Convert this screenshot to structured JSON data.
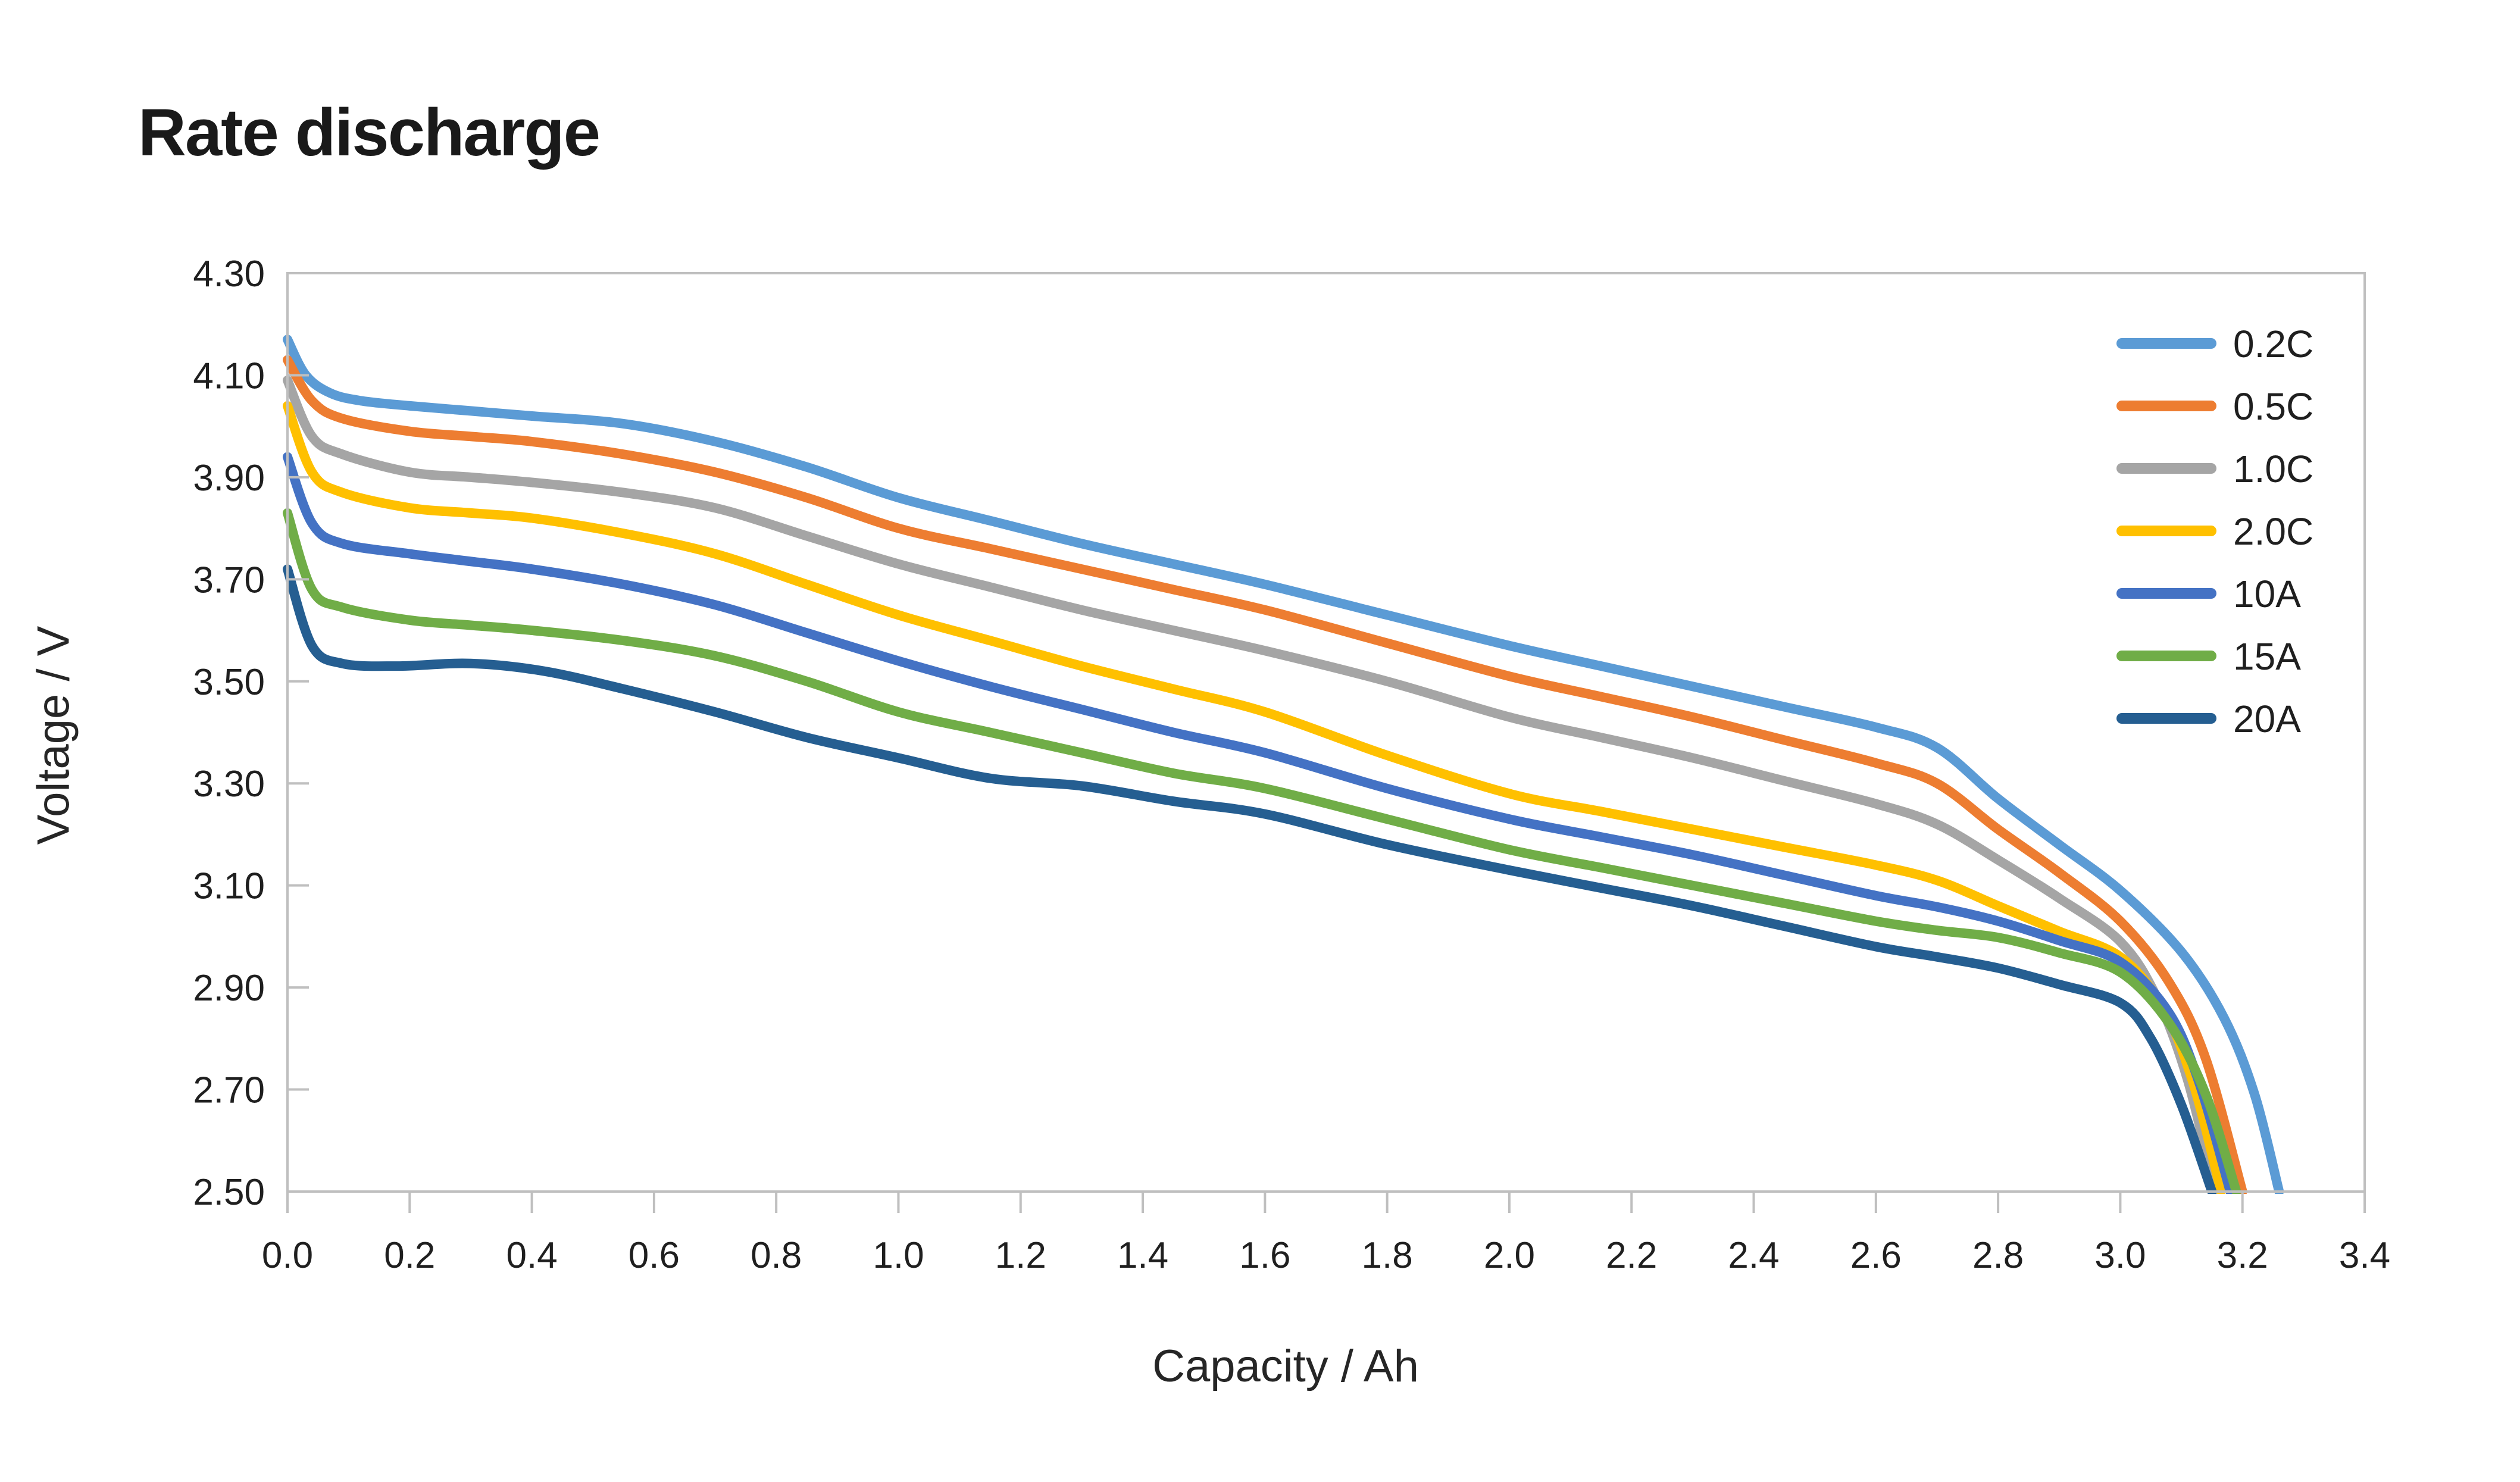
{
  "chart": {
    "title": "Rate discharge",
    "xlabel": "Capacity / Ah",
    "ylabel": "Voltage / V"
  },
  "chart_data": {
    "type": "line",
    "title": "Rate discharge",
    "xlabel": "Capacity / Ah",
    "ylabel": "Voltage / V",
    "xlim": [
      0.0,
      3.4
    ],
    "ylim": [
      2.5,
      4.3
    ],
    "xtick_step": 0.2,
    "ytick_step": 0.2,
    "xtick_decimals": 1,
    "ytick_decimals": 2,
    "grid": false,
    "legend_position": "inside-top-right",
    "axis_color": "#bfbfbf",
    "text_color": "#1f1f1f",
    "line_width": 16,
    "series": [
      {
        "name": "0.2C",
        "color": "#5B9BD5",
        "points": [
          [
            0,
            4.17
          ],
          [
            0.03,
            4.1
          ],
          [
            0.07,
            4.065
          ],
          [
            0.12,
            4.05
          ],
          [
            0.2,
            4.04
          ],
          [
            0.3,
            4.03
          ],
          [
            0.4,
            4.02
          ],
          [
            0.55,
            4.005
          ],
          [
            0.7,
            3.97
          ],
          [
            0.85,
            3.92
          ],
          [
            1.0,
            3.86
          ],
          [
            1.15,
            3.815
          ],
          [
            1.3,
            3.77
          ],
          [
            1.45,
            3.73
          ],
          [
            1.6,
            3.69
          ],
          [
            1.8,
            3.63
          ],
          [
            2.0,
            3.57
          ],
          [
            2.15,
            3.53
          ],
          [
            2.3,
            3.49
          ],
          [
            2.45,
            3.45
          ],
          [
            2.6,
            3.41
          ],
          [
            2.7,
            3.37
          ],
          [
            2.8,
            3.27
          ],
          [
            2.9,
            3.18
          ],
          [
            3.0,
            3.09
          ],
          [
            3.1,
            2.97
          ],
          [
            3.17,
            2.84
          ],
          [
            3.22,
            2.69
          ],
          [
            3.26,
            2.5
          ]
        ]
      },
      {
        "name": "0.5C",
        "color": "#ED7D31",
        "points": [
          [
            0,
            4.13
          ],
          [
            0.04,
            4.05
          ],
          [
            0.09,
            4.015
          ],
          [
            0.2,
            3.99
          ],
          [
            0.3,
            3.98
          ],
          [
            0.4,
            3.97
          ],
          [
            0.55,
            3.945
          ],
          [
            0.7,
            3.91
          ],
          [
            0.85,
            3.86
          ],
          [
            1.0,
            3.8
          ],
          [
            1.15,
            3.76
          ],
          [
            1.3,
            3.72
          ],
          [
            1.45,
            3.68
          ],
          [
            1.6,
            3.64
          ],
          [
            1.8,
            3.575
          ],
          [
            2.0,
            3.51
          ],
          [
            2.15,
            3.47
          ],
          [
            2.3,
            3.43
          ],
          [
            2.45,
            3.385
          ],
          [
            2.6,
            3.34
          ],
          [
            2.7,
            3.3
          ],
          [
            2.8,
            3.21
          ],
          [
            2.9,
            3.125
          ],
          [
            3.0,
            3.03
          ],
          [
            3.08,
            2.91
          ],
          [
            3.14,
            2.76
          ],
          [
            3.2,
            2.5
          ]
        ]
      },
      {
        "name": "1.0C",
        "color": "#A5A5A5",
        "points": [
          [
            0,
            4.09
          ],
          [
            0.04,
            3.98
          ],
          [
            0.09,
            3.945
          ],
          [
            0.2,
            3.91
          ],
          [
            0.3,
            3.9
          ],
          [
            0.4,
            3.89
          ],
          [
            0.55,
            3.87
          ],
          [
            0.7,
            3.84
          ],
          [
            0.85,
            3.785
          ],
          [
            1.0,
            3.73
          ],
          [
            1.15,
            3.685
          ],
          [
            1.3,
            3.64
          ],
          [
            1.45,
            3.6
          ],
          [
            1.6,
            3.56
          ],
          [
            1.8,
            3.5
          ],
          [
            2.0,
            3.43
          ],
          [
            2.15,
            3.39
          ],
          [
            2.3,
            3.35
          ],
          [
            2.45,
            3.305
          ],
          [
            2.6,
            3.26
          ],
          [
            2.7,
            3.22
          ],
          [
            2.8,
            3.15
          ],
          [
            2.9,
            3.075
          ],
          [
            3.0,
            2.99
          ],
          [
            3.06,
            2.88
          ],
          [
            3.11,
            2.72
          ],
          [
            3.155,
            2.5
          ]
        ]
      },
      {
        "name": "2.0C",
        "color": "#FFC000",
        "points": [
          [
            0,
            4.04
          ],
          [
            0.04,
            3.91
          ],
          [
            0.09,
            3.87
          ],
          [
            0.2,
            3.84
          ],
          [
            0.3,
            3.83
          ],
          [
            0.4,
            3.82
          ],
          [
            0.55,
            3.79
          ],
          [
            0.7,
            3.75
          ],
          [
            0.85,
            3.69
          ],
          [
            1.0,
            3.63
          ],
          [
            1.15,
            3.58
          ],
          [
            1.3,
            3.53
          ],
          [
            1.45,
            3.485
          ],
          [
            1.6,
            3.44
          ],
          [
            1.8,
            3.355
          ],
          [
            2.0,
            3.28
          ],
          [
            2.15,
            3.245
          ],
          [
            2.3,
            3.21
          ],
          [
            2.45,
            3.175
          ],
          [
            2.6,
            3.14
          ],
          [
            2.7,
            3.11
          ],
          [
            2.8,
            3.06
          ],
          [
            2.9,
            3.01
          ],
          [
            3.0,
            2.96
          ],
          [
            3.07,
            2.86
          ],
          [
            3.12,
            2.71
          ],
          [
            3.165,
            2.5
          ]
        ]
      },
      {
        "name": "10A",
        "color": "#4472C4",
        "points": [
          [
            0,
            3.94
          ],
          [
            0.04,
            3.81
          ],
          [
            0.09,
            3.77
          ],
          [
            0.2,
            3.75
          ],
          [
            0.3,
            3.735
          ],
          [
            0.4,
            3.72
          ],
          [
            0.55,
            3.69
          ],
          [
            0.7,
            3.65
          ],
          [
            0.85,
            3.595
          ],
          [
            1.0,
            3.54
          ],
          [
            1.15,
            3.49
          ],
          [
            1.3,
            3.445
          ],
          [
            1.45,
            3.4
          ],
          [
            1.6,
            3.36
          ],
          [
            1.8,
            3.29
          ],
          [
            2.0,
            3.23
          ],
          [
            2.15,
            3.195
          ],
          [
            2.3,
            3.16
          ],
          [
            2.45,
            3.12
          ],
          [
            2.6,
            3.08
          ],
          [
            2.7,
            3.058
          ],
          [
            2.8,
            3.03
          ],
          [
            2.9,
            2.992
          ],
          [
            3.0,
            2.95
          ],
          [
            3.08,
            2.85
          ],
          [
            3.13,
            2.71
          ],
          [
            3.18,
            2.5
          ]
        ]
      },
      {
        "name": "15A",
        "color": "#70AD47",
        "points": [
          [
            0,
            3.83
          ],
          [
            0.04,
            3.68
          ],
          [
            0.09,
            3.645
          ],
          [
            0.2,
            3.62
          ],
          [
            0.3,
            3.61
          ],
          [
            0.4,
            3.6
          ],
          [
            0.55,
            3.58
          ],
          [
            0.7,
            3.55
          ],
          [
            0.85,
            3.5
          ],
          [
            1.0,
            3.44
          ],
          [
            1.15,
            3.4
          ],
          [
            1.3,
            3.36
          ],
          [
            1.45,
            3.32
          ],
          [
            1.6,
            3.29
          ],
          [
            1.8,
            3.23
          ],
          [
            2.0,
            3.17
          ],
          [
            2.15,
            3.135
          ],
          [
            2.3,
            3.1
          ],
          [
            2.45,
            3.065
          ],
          [
            2.6,
            3.03
          ],
          [
            2.7,
            3.012
          ],
          [
            2.8,
            2.998
          ],
          [
            2.9,
            2.968
          ],
          [
            3.0,
            2.93
          ],
          [
            3.08,
            2.83
          ],
          [
            3.14,
            2.69
          ],
          [
            3.19,
            2.5
          ]
        ]
      },
      {
        "name": "20A",
        "color": "#255E91",
        "points": [
          [
            0,
            3.72
          ],
          [
            0.04,
            3.57
          ],
          [
            0.09,
            3.535
          ],
          [
            0.18,
            3.53
          ],
          [
            0.3,
            3.535
          ],
          [
            0.42,
            3.52
          ],
          [
            0.55,
            3.485
          ],
          [
            0.7,
            3.44
          ],
          [
            0.85,
            3.39
          ],
          [
            1.0,
            3.35
          ],
          [
            1.15,
            3.31
          ],
          [
            1.3,
            3.295
          ],
          [
            1.45,
            3.265
          ],
          [
            1.6,
            3.24
          ],
          [
            1.8,
            3.18
          ],
          [
            2.0,
            3.13
          ],
          [
            2.15,
            3.095
          ],
          [
            2.3,
            3.06
          ],
          [
            2.45,
            3.02
          ],
          [
            2.6,
            2.98
          ],
          [
            2.7,
            2.96
          ],
          [
            2.8,
            2.938
          ],
          [
            2.9,
            2.906
          ],
          [
            3.0,
            2.87
          ],
          [
            3.05,
            2.8
          ],
          [
            3.1,
            2.67
          ],
          [
            3.15,
            2.5
          ]
        ]
      }
    ]
  },
  "layout_note": "legend order top to bottom matches series order"
}
